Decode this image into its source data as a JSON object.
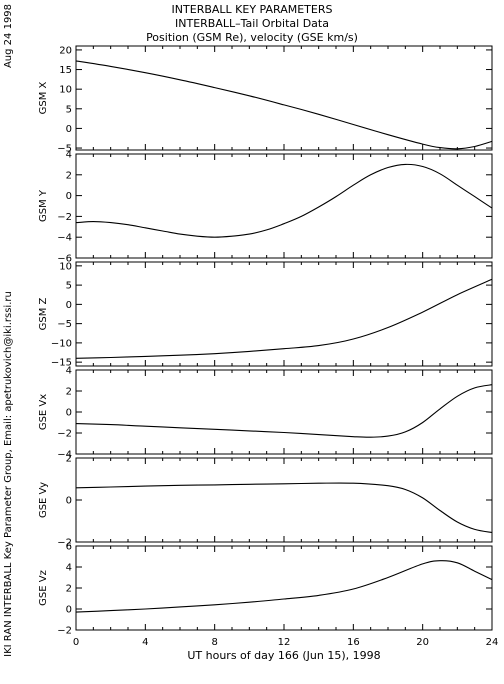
{
  "header": {
    "title_lines": [
      "INTERBALL KEY PARAMETERS",
      "INTERBALL–Tail Orbital Data",
      "Position (GSM Re), velocity (GSE km/s)"
    ],
    "date_label": "Aug 24 1998",
    "credit_label": "IKI RAN INTERBALL Key Parameter Group, Email: apetrukovich@iki.rssi.ru"
  },
  "chart_data": {
    "type": "line",
    "xlabel": "UT hours of day 166 (Jun 15), 1998",
    "xlim": [
      0,
      24
    ],
    "xticks": [
      0,
      4,
      8,
      12,
      16,
      20,
      24
    ],
    "panels": [
      {
        "ylabel": "GSM X",
        "ylim": [
          -5.5,
          21
        ],
        "yticks": [
          -5,
          0,
          5,
          10,
          15,
          20
        ],
        "x": [
          0,
          2,
          4,
          6,
          8,
          10,
          12,
          14,
          16,
          18,
          20,
          21,
          22,
          23,
          24
        ],
        "y": [
          17.2,
          15.8,
          14.2,
          12.4,
          10.4,
          8.3,
          6.0,
          3.6,
          1.0,
          -1.6,
          -4.0,
          -4.9,
          -5.2,
          -4.6,
          -3.3
        ]
      },
      {
        "ylabel": "GSM Y",
        "ylim": [
          -6,
          4
        ],
        "yticks": [
          -6,
          -4,
          -2,
          0,
          2,
          4
        ],
        "x": [
          0,
          1,
          2,
          3,
          4,
          5,
          6,
          7,
          8,
          9,
          10,
          11,
          12,
          13,
          14,
          15,
          16,
          17,
          18,
          19,
          20,
          21,
          22,
          23,
          24
        ],
        "y": [
          -2.6,
          -2.5,
          -2.6,
          -2.8,
          -3.1,
          -3.4,
          -3.7,
          -3.9,
          -4.0,
          -3.9,
          -3.7,
          -3.3,
          -2.7,
          -2.0,
          -1.1,
          -0.1,
          1.0,
          2.0,
          2.7,
          3.0,
          2.8,
          2.1,
          1.0,
          -0.1,
          -1.2
        ]
      },
      {
        "ylabel": "GSM Z",
        "ylim": [
          -16,
          11
        ],
        "yticks": [
          -15,
          -10,
          -5,
          0,
          5,
          10
        ],
        "x": [
          0,
          2,
          4,
          6,
          8,
          10,
          12,
          14,
          16,
          18,
          20,
          22,
          24
        ],
        "y": [
          -14.0,
          -13.8,
          -13.5,
          -13.2,
          -12.8,
          -12.2,
          -11.5,
          -10.7,
          -9.0,
          -6.0,
          -2.0,
          2.5,
          6.5
        ]
      },
      {
        "ylabel": "GSE Vx",
        "ylim": [
          -4,
          4
        ],
        "yticks": [
          -4,
          -2,
          0,
          2,
          4
        ],
        "x": [
          0,
          2,
          4,
          6,
          8,
          10,
          12,
          14,
          16,
          17,
          18,
          19,
          20,
          21,
          22,
          23,
          24
        ],
        "y": [
          -1.1,
          -1.2,
          -1.35,
          -1.5,
          -1.65,
          -1.8,
          -1.95,
          -2.15,
          -2.35,
          -2.4,
          -2.3,
          -1.9,
          -1.0,
          0.3,
          1.5,
          2.3,
          2.6
        ]
      },
      {
        "ylabel": "GSE Vy",
        "ylim": [
          -2,
          2
        ],
        "yticks": [
          -2,
          0,
          2
        ],
        "x": [
          0,
          2,
          4,
          6,
          8,
          10,
          12,
          14,
          16,
          18,
          19,
          20,
          21,
          22,
          23,
          24
        ],
        "y": [
          0.58,
          0.62,
          0.66,
          0.7,
          0.72,
          0.75,
          0.77,
          0.8,
          0.8,
          0.68,
          0.5,
          0.1,
          -0.5,
          -1.05,
          -1.4,
          -1.55
        ]
      },
      {
        "ylabel": "GSE Vz",
        "ylim": [
          -2,
          6
        ],
        "yticks": [
          -2,
          0,
          2,
          4,
          6
        ],
        "x": [
          0,
          2,
          4,
          6,
          8,
          10,
          12,
          14,
          16,
          18,
          20,
          21,
          22,
          23,
          24
        ],
        "y": [
          -0.3,
          -0.15,
          0.0,
          0.2,
          0.4,
          0.65,
          0.95,
          1.3,
          1.9,
          3.0,
          4.3,
          4.6,
          4.4,
          3.6,
          2.8
        ]
      }
    ]
  }
}
